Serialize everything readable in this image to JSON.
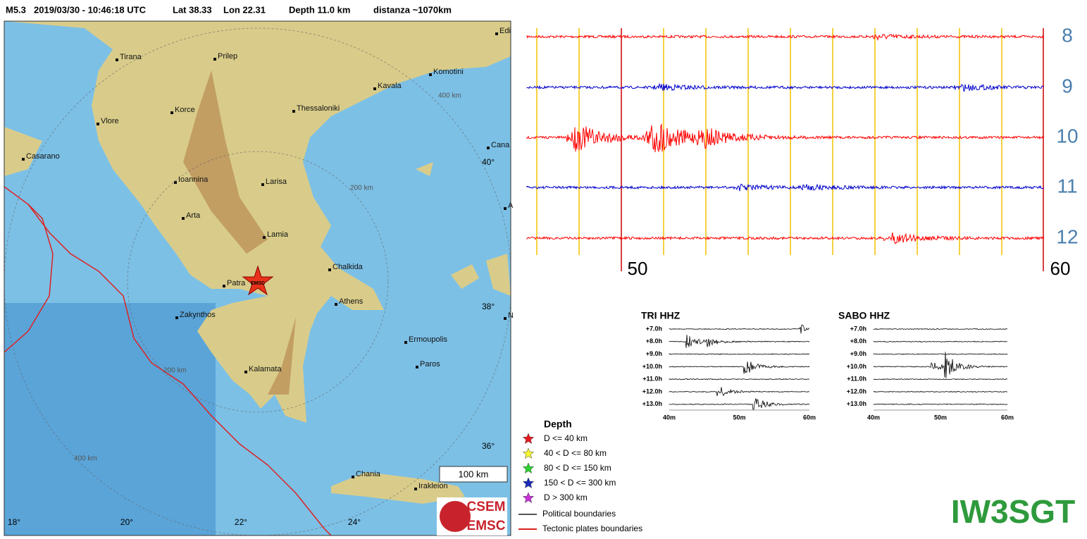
{
  "header": {
    "magnitude": "M5.3",
    "datetime": "2019/03/30 - 10:46:18 UTC",
    "lat": "Lat 38.33",
    "lon": "Lon 22.31",
    "depth": "Depth  11.0 km",
    "distance": "distanza ~1070km"
  },
  "map": {
    "cities": [
      "Tirana",
      "Prilep",
      "Komotini",
      "Kavala",
      "Korce",
      "Thessaloniki",
      "Vlore",
      "Casarano",
      "Ioannina",
      "Larisa",
      "Arta",
      "Lamia",
      "Chalkida",
      "Patra",
      "Athens",
      "Zakynthos",
      "Ermoupolis",
      "Paros",
      "Kalamata",
      "Chania",
      "Irakleion",
      "Edi",
      "Cana",
      "A",
      "N"
    ],
    "ring_labels": [
      "400 km",
      "200 km",
      "200 km",
      "400 km"
    ],
    "lat_labels": [
      "40°",
      "38°",
      "36°"
    ],
    "lon_labels": [
      "18°",
      "20°",
      "22°",
      "24°"
    ],
    "scale": "100 km",
    "epicenter": "EMSC"
  },
  "legend": {
    "title": "Depth",
    "depth_classes": [
      "D <= 40 km",
      "40 < D <= 80 km",
      "80 < D <= 150 km",
      "150 < D <= 300 km",
      "D > 300 km"
    ],
    "lines": [
      "Political boundaries",
      "Tectonic plates boundaries"
    ],
    "logo": [
      "CSEM",
      "EMSC"
    ]
  },
  "seismogram": {
    "rows": [
      "8",
      "9",
      "10",
      "11",
      "12"
    ],
    "minutes": [
      "50",
      "60"
    ]
  },
  "helicorders": [
    {
      "title": "TRI HHZ",
      "rows": [
        "+7.0h",
        "+8.0h",
        "+9.0h",
        "+10.0h",
        "+11.0h",
        "+12.0h",
        "+13.0h"
      ],
      "x": [
        "40m",
        "50m",
        "60m"
      ]
    },
    {
      "title": "SABO HHZ",
      "rows": [
        "+7.0h",
        "+8.0h",
        "+9.0h",
        "+10.0h",
        "+11.0h",
        "+12.0h",
        "+13.0h"
      ],
      "x": [
        "40m",
        "50m",
        "60m"
      ]
    }
  ],
  "callsign": "IW3SGT"
}
